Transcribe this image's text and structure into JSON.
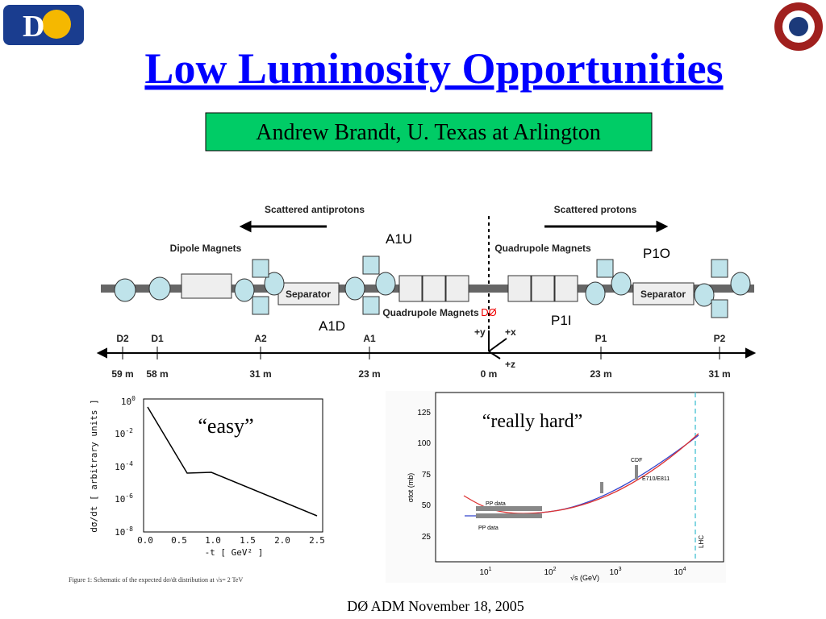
{
  "header": {
    "title": "Low Luminosity Opportunities",
    "author": "Andrew Brandt,  U. Texas at Arlington"
  },
  "diagram": {
    "arrows": [
      "Scattered antiprotons",
      "Scattered protons"
    ],
    "components": {
      "dipole": "Dipole Magnets",
      "separator_left": "Separator",
      "separator_right": "Separator",
      "quad_left": "Quadrupole Magnets",
      "quad_right": "Quadrupole Magnets"
    },
    "detectors": {
      "a1u": "A1U",
      "a1d": "A1D",
      "p1o": "P1O",
      "p1i": "P1I",
      "center": "DØ"
    },
    "axes": {
      "y": "+y",
      "x": "+x",
      "z": "+z"
    },
    "stations": [
      "D2",
      "D1",
      "A2",
      "A1",
      "P1",
      "P2"
    ],
    "distances": [
      "59 m",
      "58 m",
      "31 m",
      "23 m",
      "0 m",
      "23 m",
      "31 m"
    ]
  },
  "left_plot": {
    "annotation": "“easy”",
    "y_label": "dσ/dt  [ arbitrary units ]",
    "x_label": "-t  [ GeV² ]",
    "yticks": [
      {
        "base": "10",
        "exp": "0"
      },
      {
        "base": "10",
        "exp": "-2"
      },
      {
        "base": "10",
        "exp": "-4"
      },
      {
        "base": "10",
        "exp": "-6"
      },
      {
        "base": "10",
        "exp": "-8"
      }
    ],
    "xticks": [
      "0.0",
      "0.5",
      "1.0",
      "1.5",
      "2.0",
      "2.5"
    ],
    "caption": "Figure 1: Schematic of the expected dσ/dt distribution at √s= 2 TeV"
  },
  "right_plot": {
    "annotation": "“really hard”",
    "y_label": "σtot (mb)",
    "x_label": "√s  (GeV)",
    "yticks": [
      "25",
      "50",
      "75",
      "100",
      "125"
    ],
    "xticks": [
      {
        "base": "10",
        "exp": "1"
      },
      {
        "base": "10",
        "exp": "2"
      },
      {
        "base": "10",
        "exp": "3"
      },
      {
        "base": "10",
        "exp": "4"
      }
    ],
    "labels": {
      "cdf": "CDF",
      "e710": "E710/E811",
      "pp_upper": "PP data",
      "pp_lower": "PP data",
      "lhc": "LHC"
    }
  },
  "footer": "DØ ADM November 18, 2005"
}
